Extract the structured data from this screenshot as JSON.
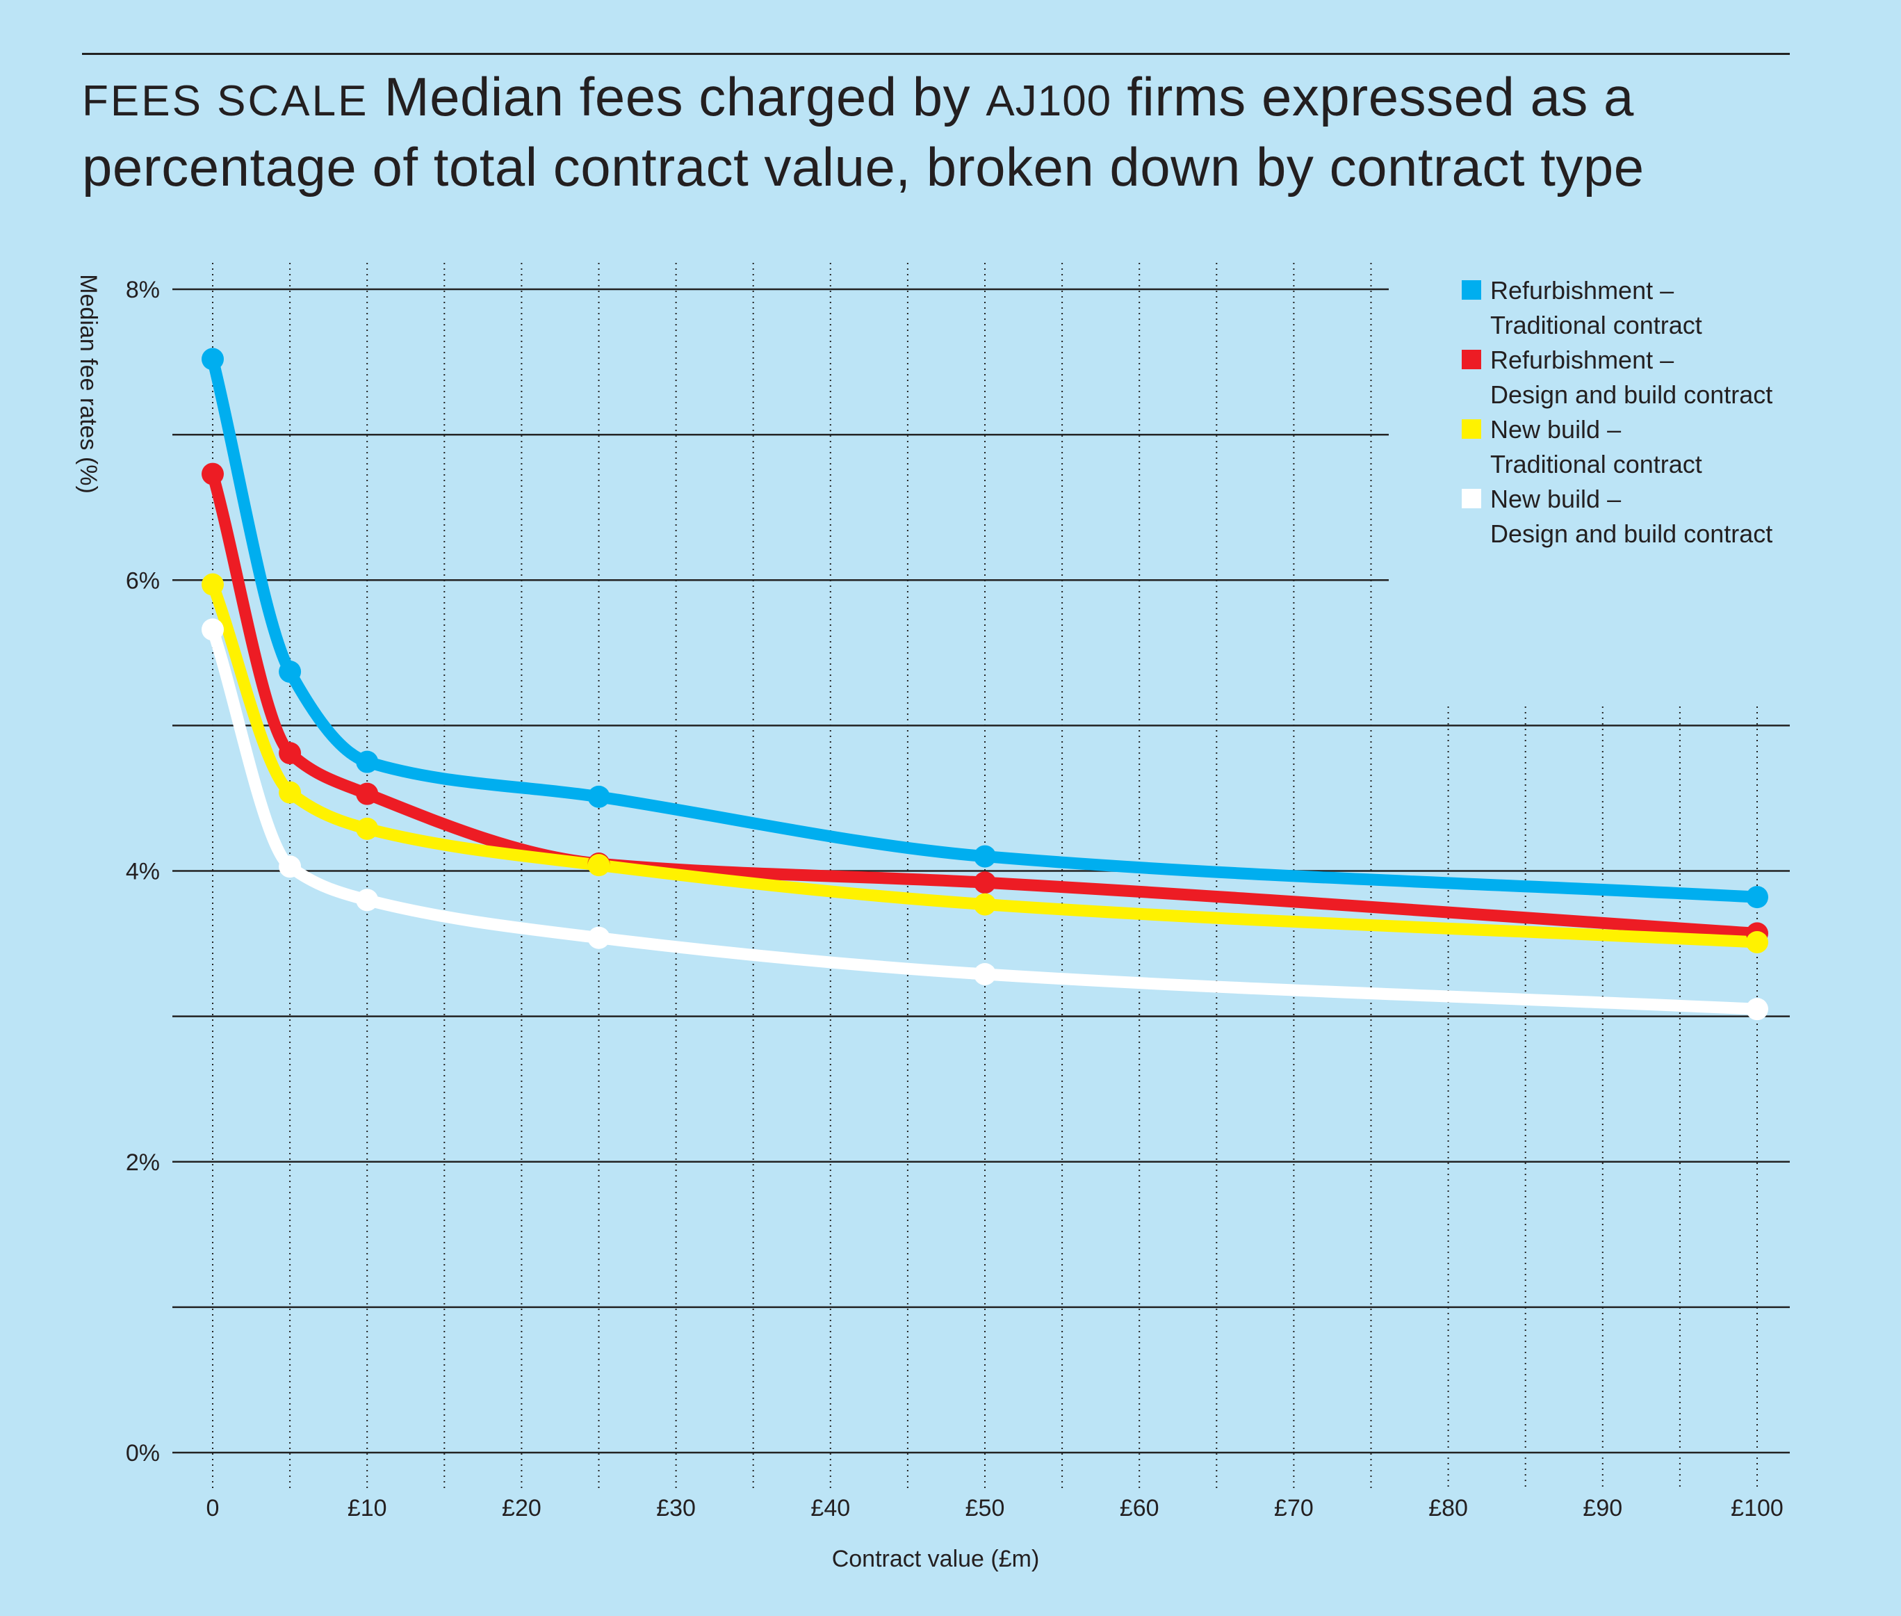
{
  "header": {
    "kicker": "FEES SCALE",
    "title_part1": "Median fees charged by",
    "brand": "AJ100",
    "title_part2": "firms expressed as a percentage of total contract value, broken down by contract type"
  },
  "chart_data": {
    "type": "line",
    "title": "FEES SCALE Median fees charged by AJ100 firms expressed as a percentage of total contract value, broken down by contract type",
    "xlabel": "Contract value (£m)",
    "ylabel": "Median fee rates (%)",
    "xlim": [
      0,
      100
    ],
    "ylim": [
      0,
      8
    ],
    "x_ticks": [
      {
        "value": 0,
        "label": "0"
      },
      {
        "value": 10,
        "label": "£10"
      },
      {
        "value": 20,
        "label": "£20"
      },
      {
        "value": 30,
        "label": "£30"
      },
      {
        "value": 40,
        "label": "£40"
      },
      {
        "value": 50,
        "label": "£50"
      },
      {
        "value": 60,
        "label": "£60"
      },
      {
        "value": 70,
        "label": "£70"
      },
      {
        "value": 80,
        "label": "£80"
      },
      {
        "value": 90,
        "label": "£90"
      },
      {
        "value": 100,
        "label": "£100"
      }
    ],
    "y_ticks": [
      {
        "value": 0,
        "label": "0%"
      },
      {
        "value": 2,
        "label": "2%"
      },
      {
        "value": 4,
        "label": "4%"
      },
      {
        "value": 6,
        "label": "6%"
      },
      {
        "value": 8,
        "label": "8%"
      }
    ],
    "y_gridlines": [
      0,
      1,
      2,
      3,
      4,
      5,
      6,
      7,
      8
    ],
    "grid": true,
    "legend_position": "top-right",
    "series": [
      {
        "name": "Refurbishment – Traditional contract",
        "legend_line1": "Refurbishment –",
        "legend_line2": "Traditional contract",
        "color": "#00aeef",
        "x": [
          0,
          5,
          10,
          25,
          50,
          100
        ],
        "values": [
          7.52,
          5.37,
          4.75,
          4.51,
          4.1,
          3.82
        ]
      },
      {
        "name": "Refurbishment – Design and build contract",
        "legend_line1": "Refurbishment –",
        "legend_line2": "Design and build contract",
        "color": "#ed1c24",
        "x": [
          0,
          5,
          10,
          25,
          50,
          100
        ],
        "values": [
          6.73,
          4.81,
          4.53,
          4.05,
          3.92,
          3.57
        ]
      },
      {
        "name": "New build – Traditional contract",
        "legend_line1": "New build –",
        "legend_line2": "Traditional contract",
        "color": "#fff200",
        "x": [
          0,
          5,
          10,
          25,
          50,
          100
        ],
        "values": [
          5.97,
          4.54,
          4.29,
          4.04,
          3.77,
          3.51
        ]
      },
      {
        "name": "New build – Design and build contract",
        "legend_line1": "New build –",
        "legend_line2": "Design and build contract",
        "color": "#ffffff",
        "x": [
          0,
          5,
          10,
          25,
          50,
          100
        ],
        "values": [
          5.66,
          4.03,
          3.8,
          3.54,
          3.29,
          3.05
        ]
      }
    ]
  }
}
